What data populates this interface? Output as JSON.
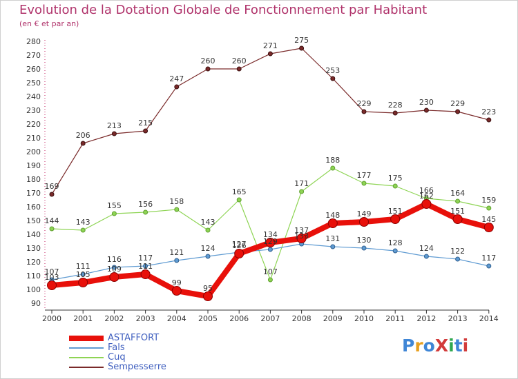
{
  "title": "Evolution de la Dotation Globale de Fonctionnement par Habitant",
  "subtitle": "(en € et par an)",
  "logo": {
    "text": "ProXiti",
    "colors": [
      "#3f86d6",
      "#e8a020",
      "#3f86d6",
      "#d23b3b",
      "#2fa84f",
      "#3f86d6",
      "#d23b3b"
    ]
  },
  "chart_data": {
    "type": "line",
    "x": [
      "2000",
      "2001",
      "2002",
      "2003",
      "2004",
      "2005",
      "2006",
      "2007",
      "2008",
      "2009",
      "2010",
      "2011",
      "2012",
      "2013",
      "2014"
    ],
    "ylim": [
      90,
      280
    ],
    "yticks": [
      90,
      100,
      110,
      120,
      130,
      140,
      150,
      160,
      170,
      180,
      190,
      200,
      210,
      220,
      230,
      240,
      250,
      260,
      270,
      280
    ],
    "grid": false,
    "legend_position": "bottom-left",
    "series": [
      {
        "name": "ASTAFFORT",
        "color": "#e8100a",
        "values": [
          103,
          105,
          109,
          111,
          99,
          95,
          126,
          134,
          137,
          148,
          149,
          151,
          162,
          151,
          145
        ]
      },
      {
        "name": "Fals",
        "color": "#5f9bd2",
        "values": [
          107,
          111,
          116,
          117,
          121,
          124,
          127,
          129,
          133,
          131,
          130,
          128,
          124,
          122,
          117
        ]
      },
      {
        "name": "Cuq",
        "color": "#8ed454",
        "values": [
          144,
          143,
          155,
          156,
          158,
          143,
          165,
          107,
          171,
          188,
          177,
          175,
          166,
          164,
          159
        ]
      },
      {
        "name": "Sempesserre",
        "color": "#7a2a2a",
        "values": [
          169,
          206,
          213,
          215,
          247,
          260,
          260,
          271,
          275,
          253,
          229,
          228,
          230,
          229,
          223
        ]
      }
    ]
  }
}
